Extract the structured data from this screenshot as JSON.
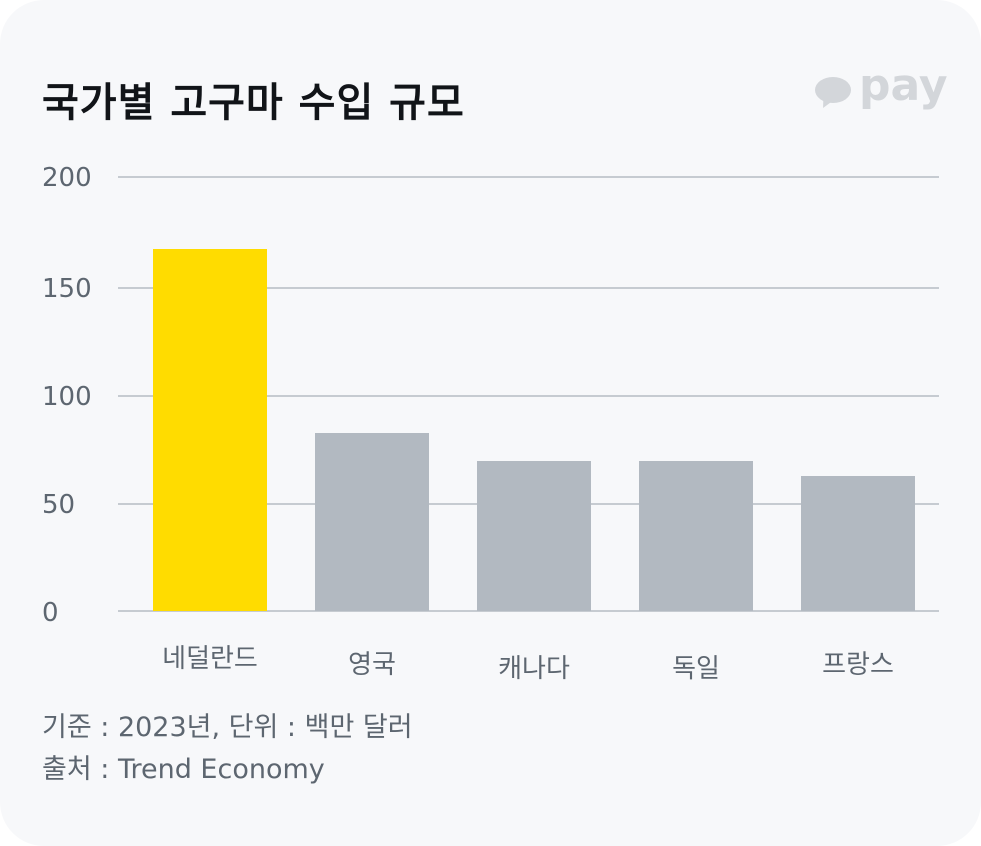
{
  "header": {
    "title": "국가별 고구마 수입 규모",
    "logo_text": "pay",
    "logo_icon": "speech-bubble-icon"
  },
  "colors": {
    "highlight": "#FFDC00",
    "default_bar": "#B2B9C1",
    "grid": "#C6CBD1",
    "background": "#F7F8FA",
    "text_muted": "#5D6670",
    "title": "#111418"
  },
  "chart_data": {
    "type": "bar",
    "title": "국가별 고구마 수입 규모",
    "categories": [
      "네덜란드",
      "영국",
      "캐나다",
      "독일",
      "프랑스"
    ],
    "values": [
      167,
      82,
      69,
      69,
      62
    ],
    "highlight_index": 0,
    "xlabel": "",
    "ylabel": "백만 달러",
    "ylim": [
      0,
      200
    ],
    "yticks": [
      0,
      50,
      100,
      150,
      200
    ],
    "grid": true,
    "legend": null
  },
  "yaxis": {
    "ticks": [
      "200",
      "150",
      "100",
      "50",
      "0"
    ]
  },
  "footer": {
    "basis": "기준 : 2023년, 단위 : 백만 달러",
    "source": "출처 : Trend Economy"
  }
}
